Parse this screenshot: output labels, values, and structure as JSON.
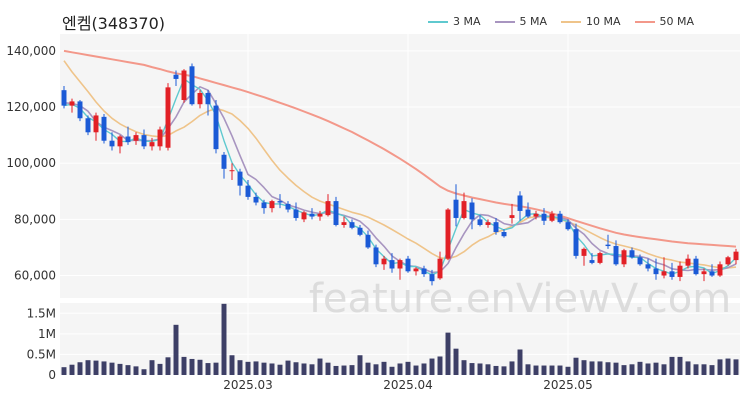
{
  "chart_data": {
    "type": "candlestick",
    "title": "엔켐(348370)",
    "watermark": "feature.enViewV.com",
    "legend": [
      "3 MA",
      "5 MA",
      "10 MA",
      "50 MA"
    ],
    "colors": {
      "up": "#e22026",
      "down": "#1b5ad6",
      "ma3": "#5fc9cf",
      "ma5": "#a895c0",
      "ma10": "#efc48a",
      "ma50": "#f3988a",
      "volume": "#3d3f66",
      "plot_bg": "#f5f5f5",
      "grid": "#ffffff"
    },
    "price_axis": {
      "ylim": [
        52000,
        146000
      ],
      "ticks": [
        60000,
        80000,
        100000,
        120000,
        140000
      ],
      "tick_labels": [
        "60,000",
        "80,000",
        "100,000",
        "120,000",
        "140,000"
      ]
    },
    "volume_axis": {
      "ylim": [
        0,
        1750000
      ],
      "ticks": [
        0,
        500000,
        1000000,
        1500000
      ],
      "tick_labels": [
        "0",
        "0.5M",
        "1M",
        "1.5M"
      ]
    },
    "x_labels": [
      {
        "index": 23,
        "label": "2025.03"
      },
      {
        "index": 43,
        "label": "2025.04"
      },
      {
        "index": 63,
        "label": "2025.05"
      }
    ],
    "ohlc": [
      [
        126000,
        127500,
        119500,
        120500
      ],
      [
        120500,
        123000,
        118000,
        122000
      ],
      [
        122000,
        122500,
        115000,
        116000
      ],
      [
        116000,
        117000,
        110000,
        111000
      ],
      [
        111000,
        118000,
        108000,
        117000
      ],
      [
        116500,
        117500,
        107000,
        108000
      ],
      [
        108000,
        111000,
        104500,
        106000
      ],
      [
        106000,
        110000,
        103500,
        109500
      ],
      [
        109500,
        113000,
        106500,
        107500
      ],
      [
        108000,
        111000,
        106500,
        110000
      ],
      [
        110000,
        112000,
        105000,
        106000
      ],
      [
        106000,
        109000,
        104500,
        107500
      ],
      [
        106000,
        113000,
        104500,
        112000
      ],
      [
        105500,
        128500,
        104500,
        127000
      ],
      [
        131500,
        133000,
        127500,
        130000
      ],
      [
        122500,
        133500,
        121500,
        133000
      ],
      [
        134500,
        135500,
        120500,
        121000
      ],
      [
        121000,
        126000,
        119500,
        125000
      ],
      [
        125000,
        126000,
        117000,
        121000
      ],
      [
        120500,
        122500,
        103500,
        105000
      ],
      [
        103000,
        104000,
        94500,
        98000
      ],
      [
        97500,
        100000,
        94000,
        97500
      ],
      [
        97000,
        98000,
        88500,
        92000
      ],
      [
        92000,
        94000,
        87000,
        88000
      ],
      [
        88000,
        89500,
        85000,
        86000
      ],
      [
        86000,
        87000,
        82000,
        84000
      ],
      [
        84000,
        87000,
        82500,
        86500
      ],
      [
        86500,
        89000,
        84000,
        86000
      ],
      [
        85500,
        86500,
        82500,
        83500
      ],
      [
        83500,
        86000,
        79500,
        80500
      ],
      [
        80000,
        83000,
        79000,
        82500
      ],
      [
        82000,
        84000,
        80000,
        81000
      ],
      [
        81000,
        83000,
        79500,
        82000
      ],
      [
        81500,
        89000,
        81000,
        86500
      ],
      [
        86500,
        88000,
        77500,
        78000
      ],
      [
        78000,
        81000,
        77000,
        79000
      ],
      [
        79000,
        80000,
        76500,
        77000
      ],
      [
        77000,
        78000,
        74000,
        74500
      ],
      [
        74500,
        76000,
        69500,
        70000
      ],
      [
        70000,
        71000,
        63000,
        64000
      ],
      [
        64000,
        67000,
        62000,
        66000
      ],
      [
        65500,
        68000,
        61000,
        62500
      ],
      [
        62500,
        66000,
        58500,
        65500
      ],
      [
        66000,
        67000,
        61000,
        61500
      ],
      [
        61500,
        63000,
        60000,
        62500
      ],
      [
        62500,
        63500,
        59500,
        60500
      ],
      [
        60500,
        62000,
        56500,
        58000
      ],
      [
        59000,
        68500,
        58500,
        66000
      ],
      [
        66000,
        84000,
        65500,
        83500
      ],
      [
        87000,
        92500,
        77500,
        80500
      ],
      [
        80500,
        89500,
        80000,
        86500
      ],
      [
        86000,
        87500,
        76500,
        80000
      ],
      [
        80000,
        81500,
        77500,
        78000
      ],
      [
        78000,
        80000,
        77000,
        79000
      ],
      [
        79000,
        80500,
        74500,
        75500
      ],
      [
        75500,
        76500,
        73500,
        74000
      ],
      [
        80500,
        85500,
        78500,
        81500
      ],
      [
        88500,
        90000,
        79500,
        83000
      ],
      [
        83500,
        86000,
        80500,
        81000
      ],
      [
        81000,
        83000,
        80000,
        82000
      ],
      [
        82000,
        84000,
        78000,
        79500
      ],
      [
        79500,
        83000,
        79000,
        82000
      ],
      [
        82000,
        83000,
        78500,
        79000
      ],
      [
        79000,
        80000,
        76000,
        76500
      ],
      [
        76500,
        78500,
        66000,
        67000
      ],
      [
        67000,
        70000,
        63500,
        69500
      ],
      [
        65500,
        68000,
        64000,
        64500
      ],
      [
        64500,
        68500,
        64000,
        68000
      ],
      [
        71000,
        74500,
        69500,
        70500
      ],
      [
        70500,
        72500,
        63500,
        64000
      ],
      [
        64000,
        69500,
        63000,
        69000
      ],
      [
        69000,
        70000,
        66000,
        66500
      ],
      [
        66500,
        67500,
        63500,
        64000
      ],
      [
        64000,
        66000,
        61500,
        62500
      ],
      [
        62500,
        66000,
        58500,
        60500
      ],
      [
        60000,
        66500,
        59000,
        61500
      ],
      [
        61500,
        64500,
        58500,
        59500
      ],
      [
        59500,
        65000,
        58000,
        63500
      ],
      [
        63500,
        67500,
        62500,
        66000
      ],
      [
        66000,
        67000,
        60000,
        60500
      ],
      [
        60500,
        62500,
        58000,
        61500
      ],
      [
        61500,
        64000,
        59500,
        60000
      ],
      [
        60000,
        65000,
        59500,
        64000
      ],
      [
        64000,
        67000,
        63500,
        66500
      ],
      [
        65500,
        69500,
        64000,
        68500
      ]
    ],
    "volume": [
      190000,
      250000,
      310000,
      360000,
      350000,
      330000,
      300000,
      270000,
      240000,
      210000,
      140000,
      360000,
      270000,
      430000,
      1220000,
      440000,
      390000,
      370000,
      290000,
      300000,
      1730000,
      480000,
      360000,
      320000,
      330000,
      300000,
      280000,
      250000,
      350000,
      310000,
      280000,
      260000,
      400000,
      300000,
      220000,
      230000,
      240000,
      480000,
      300000,
      260000,
      320000,
      200000,
      280000,
      320000,
      230000,
      280000,
      400000,
      450000,
      1030000,
      640000,
      360000,
      290000,
      280000,
      260000,
      220000,
      210000,
      330000,
      620000,
      260000,
      230000,
      230000,
      230000,
      230000,
      200000,
      420000,
      360000,
      330000,
      330000,
      310000,
      300000,
      240000,
      260000,
      320000,
      280000,
      300000,
      260000,
      440000,
      440000,
      330000,
      260000,
      260000,
      240000,
      380000,
      400000,
      380000
    ],
    "ma3": [
      120500,
      121000,
      119500,
      116300,
      114700,
      112000,
      110300,
      107800,
      107700,
      109000,
      107800,
      107800,
      108500,
      115500,
      123000,
      130000,
      128000,
      126300,
      122300,
      117000,
      108000,
      100200,
      95800,
      92500,
      88700,
      86000,
      85500,
      85500,
      84700,
      83300,
      82200,
      81300,
      81800,
      83300,
      82200,
      81200,
      78000,
      76800,
      73800,
      69500,
      66700,
      64200,
      64700,
      63200,
      63200,
      61500,
      60300,
      61500,
      69200,
      76700,
      83500,
      82300,
      81500,
      79000,
      77500,
      76200,
      77000,
      79500,
      81800,
      82000,
      80800,
      81200,
      80200,
      79200,
      74200,
      71000,
      67000,
      67300,
      67700,
      67500,
      67200,
      66500,
      66500,
      64300,
      62500,
      61500,
      60500,
      61500,
      63000,
      63300,
      62700,
      60700,
      61800,
      63500,
      66300
    ],
    "ma5": [
      121500,
      121300,
      120500,
      118500,
      114800,
      112800,
      111600,
      110300,
      108000,
      108200,
      108000,
      108000,
      108600,
      112300,
      116500,
      121800,
      124600,
      127200,
      126000,
      121200,
      116000,
      109700,
      102700,
      96000,
      94200,
      91300,
      88100,
      86900,
      85100,
      84300,
      83300,
      82600,
      82000,
      82500,
      82100,
      81400,
      80500,
      79300,
      76800,
      73400,
      70400,
      67000,
      65000,
      63500,
      63200,
      62300,
      61100,
      61300,
      64300,
      69900,
      74900,
      79300,
      81700,
      81400,
      80200,
      78500,
      77900,
      78300,
      78800,
      80700,
      81400,
      80800,
      80700,
      79800,
      76900,
      74700,
      71400,
      69000,
      67800,
      66800,
      66800,
      67000,
      66800,
      66100,
      64600,
      63800,
      62400,
      62000,
      61800,
      62200,
      62200,
      61900,
      62100,
      62800,
      64100
    ],
    "ma10": [
      136500,
      132500,
      129000,
      125500,
      121800,
      118600,
      116000,
      114000,
      112500,
      111200,
      110200,
      109700,
      109400,
      109900,
      111500,
      112800,
      114800,
      117000,
      118500,
      119500,
      118700,
      117500,
      115200,
      112400,
      108900,
      104900,
      101000,
      97500,
      94700,
      92100,
      89900,
      87900,
      86500,
      85500,
      84500,
      83500,
      82500,
      81800,
      80800,
      79400,
      78000,
      76400,
      74700,
      73000,
      71500,
      69700,
      67800,
      66300,
      66000,
      66800,
      68500,
      70800,
      72600,
      73800,
      75400,
      76300,
      77600,
      78900,
      80500,
      81000,
      80800,
      80500,
      80000,
      79100,
      78000,
      76500,
      75000,
      73500,
      72200,
      71200,
      70500,
      69800,
      69000,
      67800,
      66800,
      66000,
      65500,
      64800,
      64500,
      64100,
      63800,
      63200,
      62800,
      62700,
      63000
    ],
    "ma50": [
      140000,
      139500,
      139000,
      138500,
      138000,
      137500,
      137000,
      136500,
      136000,
      135500,
      135000,
      134200,
      133500,
      132700,
      132000,
      131500,
      131000,
      130200,
      129400,
      128600,
      127800,
      127000,
      126200,
      125300,
      124400,
      123500,
      122500,
      121500,
      120500,
      119500,
      118400,
      117300,
      116200,
      115000,
      113700,
      112400,
      111100,
      109600,
      108100,
      106600,
      105000,
      103300,
      101600,
      99800,
      97900,
      95900,
      93800,
      91700,
      90200,
      89200,
      88500,
      87800,
      87200,
      86600,
      86000,
      85500,
      85100,
      84700,
      84200,
      83600,
      82900,
      82100,
      81300,
      80400,
      79500,
      78600,
      77700,
      76800,
      76000,
      75200,
      74600,
      74100,
      73700,
      73300,
      72900,
      72500,
      72100,
      71800,
      71500,
      71300,
      71100,
      70900,
      70700,
      70500,
      70300
    ]
  }
}
